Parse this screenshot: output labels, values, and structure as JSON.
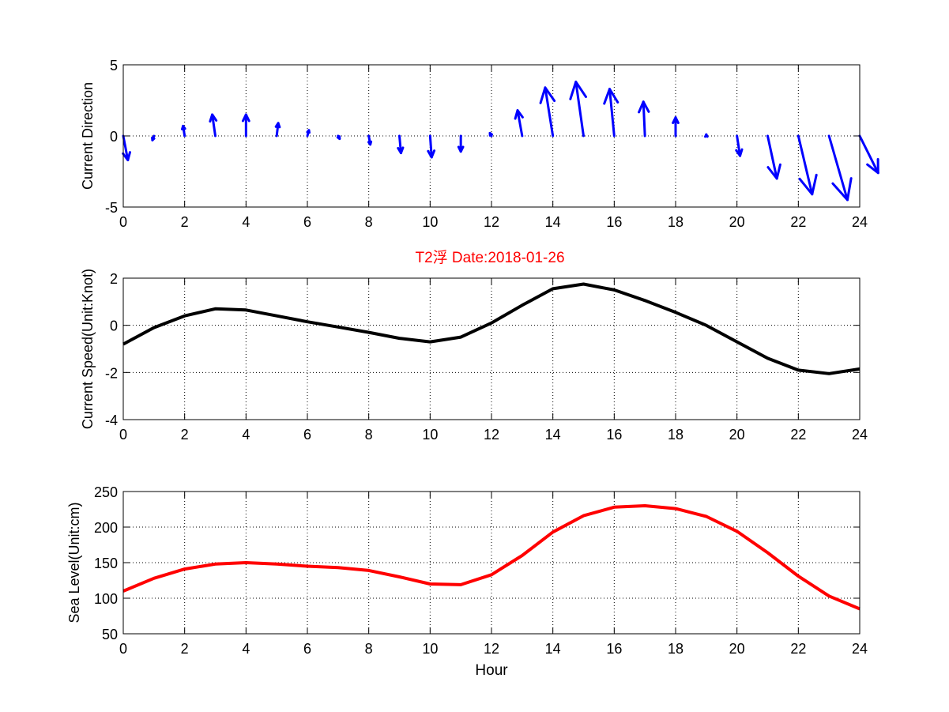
{
  "figure": {
    "title": "T2浮   Date:2018-01-26",
    "title_color": "#ff0000"
  },
  "chart_data": [
    {
      "type": "quiver",
      "ylabel": "Current Direction",
      "xlabel": "",
      "xlim": [
        0,
        24
      ],
      "ylim": [
        -5,
        5
      ],
      "xticks": [
        "0",
        "2",
        "4",
        "6",
        "8",
        "10",
        "12",
        "14",
        "16",
        "18",
        "20",
        "22",
        "24"
      ],
      "yticks": [
        "-5",
        "0",
        "5"
      ],
      "grid": true,
      "color": "#0000ff",
      "x": [
        0,
        1,
        2,
        3,
        4,
        5,
        6,
        7,
        8,
        9,
        10,
        11,
        12,
        13,
        14,
        15,
        16,
        17,
        18,
        19,
        20,
        21,
        22,
        23,
        24
      ],
      "u": [
        0.15,
        -0.05,
        -0.05,
        -0.1,
        0.0,
        0.05,
        0.05,
        0.05,
        0.05,
        0.05,
        0.05,
        0.0,
        -0.05,
        -0.15,
        -0.25,
        -0.25,
        -0.15,
        -0.05,
        0.0,
        0.0,
        0.1,
        0.3,
        0.45,
        0.6,
        0.6
      ],
      "v": [
        -1.7,
        -0.3,
        0.7,
        1.5,
        1.5,
        0.9,
        0.4,
        -0.2,
        -0.6,
        -1.2,
        -1.5,
        -1.1,
        0.2,
        1.8,
        3.4,
        3.8,
        3.3,
        2.4,
        1.3,
        0.1,
        -1.4,
        -3.0,
        -4.1,
        -4.5,
        -2.6
      ]
    },
    {
      "type": "line",
      "ylabel": "Current Speed(Unit:Knot)",
      "xlabel": "",
      "xlim": [
        0,
        24
      ],
      "ylim": [
        -4,
        2
      ],
      "xticks": [
        "0",
        "2",
        "4",
        "6",
        "8",
        "10",
        "12",
        "14",
        "16",
        "18",
        "20",
        "22",
        "24"
      ],
      "yticks": [
        "-4",
        "-2",
        "0",
        "2"
      ],
      "grid": true,
      "color": "#000000",
      "x": [
        0,
        1,
        2,
        3,
        4,
        5,
        6,
        7,
        8,
        9,
        10,
        11,
        12,
        13,
        14,
        15,
        16,
        17,
        18,
        19,
        20,
        21,
        22,
        23,
        24
      ],
      "y": [
        -0.8,
        -0.1,
        0.4,
        0.7,
        0.65,
        0.4,
        0.15,
        -0.07,
        -0.3,
        -0.55,
        -0.7,
        -0.5,
        0.1,
        0.85,
        1.55,
        1.75,
        1.5,
        1.05,
        0.55,
        0.0,
        -0.7,
        -1.4,
        -1.9,
        -2.05,
        -1.85
      ]
    },
    {
      "type": "line",
      "ylabel": "Sea Level(Unit:cm)",
      "xlabel": "Hour",
      "xlim": [
        0,
        24
      ],
      "ylim": [
        50,
        250
      ],
      "xticks": [
        "0",
        "2",
        "4",
        "6",
        "8",
        "10",
        "12",
        "14",
        "16",
        "18",
        "20",
        "22",
        "24"
      ],
      "yticks": [
        "50",
        "100",
        "150",
        "200",
        "250"
      ],
      "grid": true,
      "color": "#ff0000",
      "x": [
        0,
        1,
        2,
        3,
        4,
        5,
        6,
        7,
        8,
        9,
        10,
        11,
        12,
        13,
        14,
        15,
        16,
        17,
        18,
        19,
        20,
        21,
        22,
        23,
        24
      ],
      "y": [
        110,
        128,
        141,
        148,
        150,
        148,
        145,
        143,
        139,
        130,
        120,
        119,
        133,
        160,
        193,
        216,
        228,
        230,
        226,
        215,
        194,
        164,
        131,
        103,
        85
      ]
    }
  ]
}
